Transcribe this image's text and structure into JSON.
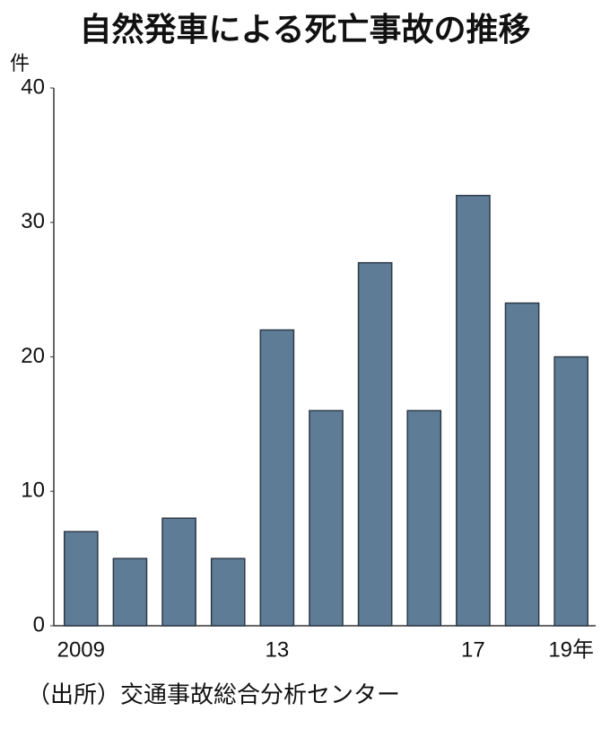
{
  "chart_data": {
    "type": "bar",
    "title": "自然発車による死亡事故の推移",
    "y_unit": "件",
    "categories": [
      "2009",
      null,
      null,
      null,
      "13",
      null,
      null,
      null,
      "17",
      null,
      "19年"
    ],
    "values": [
      7,
      5,
      8,
      5,
      22,
      16,
      27,
      16,
      32,
      24,
      20
    ],
    "color": "#5f7c96",
    "ylim": [
      0,
      40
    ],
    "yticks": [
      0,
      10,
      20,
      30,
      40
    ],
    "grid": false,
    "source": "（出所）交通事故総合分析センター"
  }
}
